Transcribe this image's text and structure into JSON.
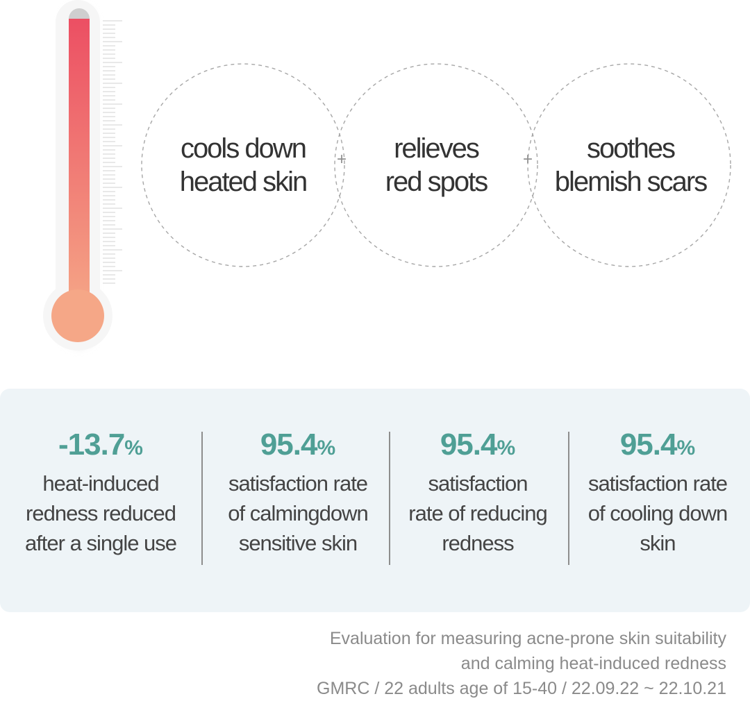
{
  "benefits": [
    {
      "line1": "cools down",
      "line2": "heated skin"
    },
    {
      "line1": "relieves",
      "line2": "red spots"
    },
    {
      "line1": "soothes",
      "line2": "blemish scars"
    }
  ],
  "plus_glyph": "+",
  "stats": [
    {
      "value": "-13.7",
      "unit": "%",
      "line1": "heat-induced",
      "line2": "redness reduced",
      "line3": "after a single use"
    },
    {
      "value": "95.4",
      "unit": "%",
      "line1": "satisfaction rate",
      "line2": "of calmingdown",
      "line3": "sensitive skin"
    },
    {
      "value": "95.4",
      "unit": "%",
      "line1": "satisfaction",
      "line2": "rate of reducing",
      "line3": "redness"
    },
    {
      "value": "95.4",
      "unit": "%",
      "line1": "satisfaction rate",
      "line2": "of cooling down",
      "line3": "skin"
    }
  ],
  "footnote": {
    "line1": "Evaluation for measuring acne-prone skin suitability",
    "line2": "and calming heat-induced redness",
    "line3": "GMRC / 22 adults age of 15-40 / 22.09.22 ~ 22.10.21"
  },
  "colors": {
    "thermometer_top": "#ec4f63",
    "thermometer_bottom": "#f5a787",
    "accent_teal": "#4f9f95",
    "panel_bg": "#eef4f7"
  },
  "icons": [
    "thermometer-icon",
    "plus-icon"
  ]
}
